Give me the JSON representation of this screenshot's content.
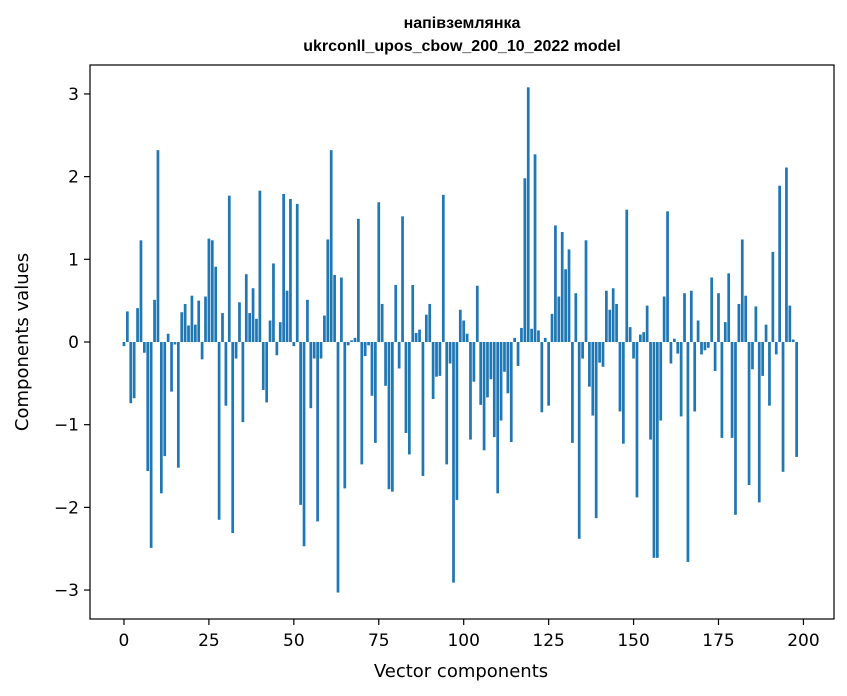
{
  "chart_data": {
    "type": "bar",
    "title_line1": "напівземлянка",
    "title_line2": "ukrconll_upos_cbow_200_10_2022 model",
    "xlabel": "Vector components",
    "ylabel": "Components values",
    "xlim": [
      -10,
      209
    ],
    "ylim": [
      -3.35,
      3.35
    ],
    "xticks": [
      0,
      25,
      50,
      75,
      100,
      125,
      150,
      175,
      200
    ],
    "yticks": [
      -3,
      -2,
      -1,
      0,
      1,
      2,
      3
    ],
    "yticklabels": [
      "−3",
      "−2",
      "−1",
      "0",
      "1",
      "2",
      "3"
    ],
    "bar_color": "#1f77b4",
    "grid": false,
    "values": [
      -0.05,
      0.37,
      -0.74,
      -0.68,
      0.41,
      1.23,
      -0.13,
      -1.56,
      -2.49,
      0.51,
      2.32,
      -1.83,
      -1.38,
      0.1,
      -0.6,
      -0.03,
      -1.52,
      0.36,
      0.46,
      0.2,
      0.56,
      0.21,
      0.5,
      -0.21,
      0.55,
      1.25,
      1.23,
      0.91,
      -2.15,
      0.35,
      -0.77,
      1.77,
      -2.31,
      -0.2,
      0.48,
      -0.97,
      0.82,
      0.35,
      0.65,
      0.28,
      1.83,
      -0.58,
      -0.73,
      0.26,
      0.95,
      -0.16,
      0.24,
      1.79,
      0.62,
      1.73,
      -0.05,
      1.67,
      -1.97,
      -2.47,
      0.51,
      -0.8,
      -0.2,
      -2.17,
      -0.2,
      0.32,
      1.24,
      2.32,
      0.81,
      -3.03,
      0.78,
      -1.77,
      -0.04,
      0.02,
      0.05,
      1.49,
      -1.48,
      -0.17,
      -0.04,
      -0.65,
      -1.22,
      1.69,
      0.46,
      -0.53,
      -1.78,
      -1.81,
      0.69,
      -0.32,
      1.52,
      -1.1,
      -1.36,
      0.69,
      0.11,
      0.15,
      -1.62,
      0.33,
      0.46,
      -0.69,
      -0.42,
      -0.41,
      1.78,
      -1.48,
      -0.26,
      -2.91,
      -1.91,
      0.39,
      0.26,
      0.1,
      -1.18,
      -0.48,
      0.68,
      -0.76,
      -1.31,
      -0.67,
      -0.45,
      -1.15,
      -1.83,
      -0.95,
      -0.36,
      -0.62,
      -1.21,
      0.05,
      -0.29,
      0.17,
      1.98,
      3.08,
      0.16,
      2.27,
      0.14,
      -0.85,
      0.05,
      -0.77,
      0.34,
      1.41,
      0.55,
      1.33,
      0.88,
      1.12,
      -1.22,
      0.59,
      -2.38,
      -0.2,
      1.23,
      -0.54,
      -0.89,
      -2.13,
      -0.25,
      -0.3,
      0.62,
      0.39,
      0.65,
      0.46,
      -0.84,
      -1.23,
      1.6,
      0.18,
      -0.2,
      -1.88,
      0.09,
      0.12,
      0.44,
      -1.18,
      -2.61,
      -2.61,
      -0.95,
      0.55,
      1.58,
      -0.26,
      0.04,
      -0.14,
      -0.9,
      0.59,
      -2.66,
      0.62,
      -0.84,
      0.26,
      -0.15,
      -0.1,
      -0.07,
      0.78,
      -0.35,
      0.59,
      -1.16,
      0.24,
      0.83,
      -1.16,
      -2.09,
      0.46,
      1.24,
      0.56,
      -1.73,
      -0.33,
      0.43,
      -1.94,
      -0.41,
      0.21,
      -0.77,
      1.09,
      -0.15,
      1.89,
      -1.57,
      2.11,
      0.44,
      0.03,
      -1.39
    ]
  }
}
